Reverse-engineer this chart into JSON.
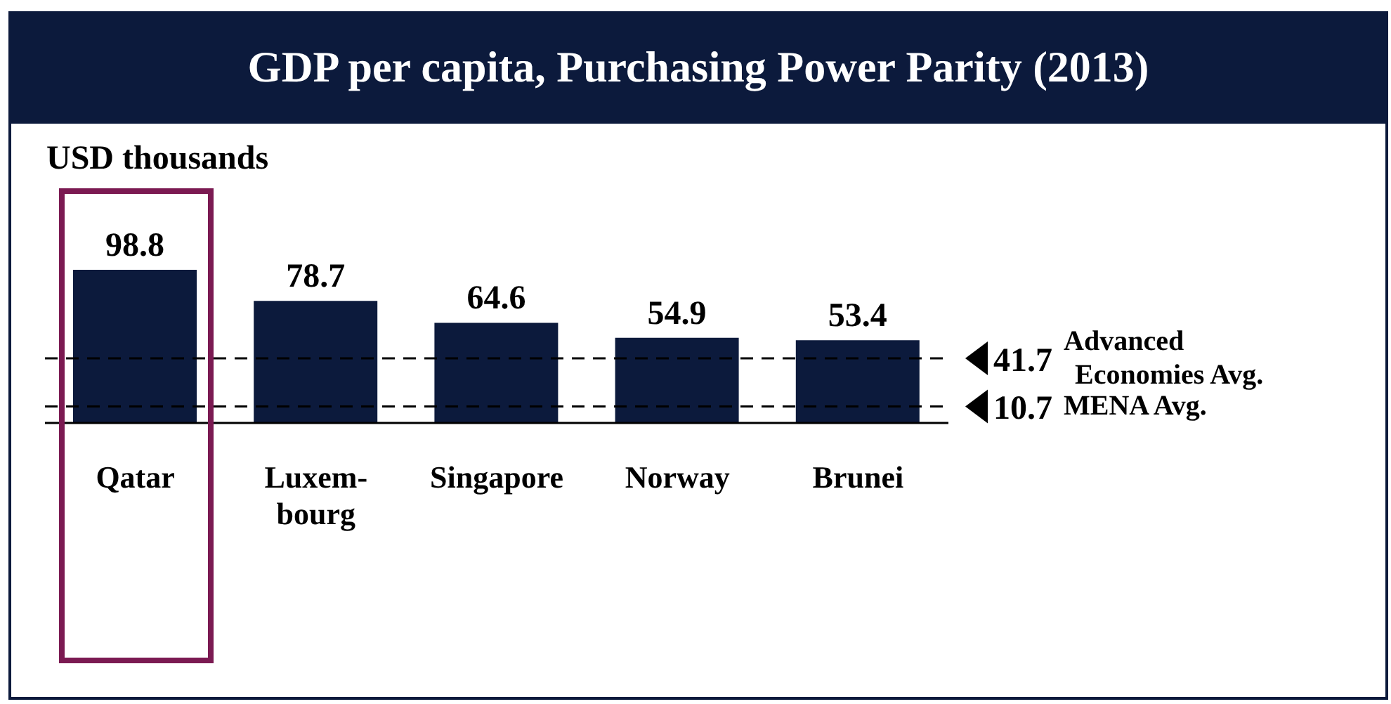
{
  "chart_data": {
    "type": "bar",
    "title": "GDP per capita, Purchasing Power Parity (2013)",
    "ylabel": "USD thousands",
    "categories": [
      "Qatar",
      "Luxem-\nbourg",
      "Singapore",
      "Norway",
      "Brunei"
    ],
    "values": [
      98.8,
      78.7,
      64.6,
      54.9,
      53.4
    ],
    "color": "#0c1a3c",
    "data_labels": true,
    "ref_lines": [
      {
        "axis": "y",
        "value": 41.7,
        "label": "41.7 Advanced\nEconomies Avg.",
        "line_style": "dashed",
        "color": "#000000"
      },
      {
        "axis": "y",
        "value": 10.7,
        "label": "10.7 MENA Avg.",
        "line_style": "dashed",
        "color": "#000000"
      }
    ]
  }
}
